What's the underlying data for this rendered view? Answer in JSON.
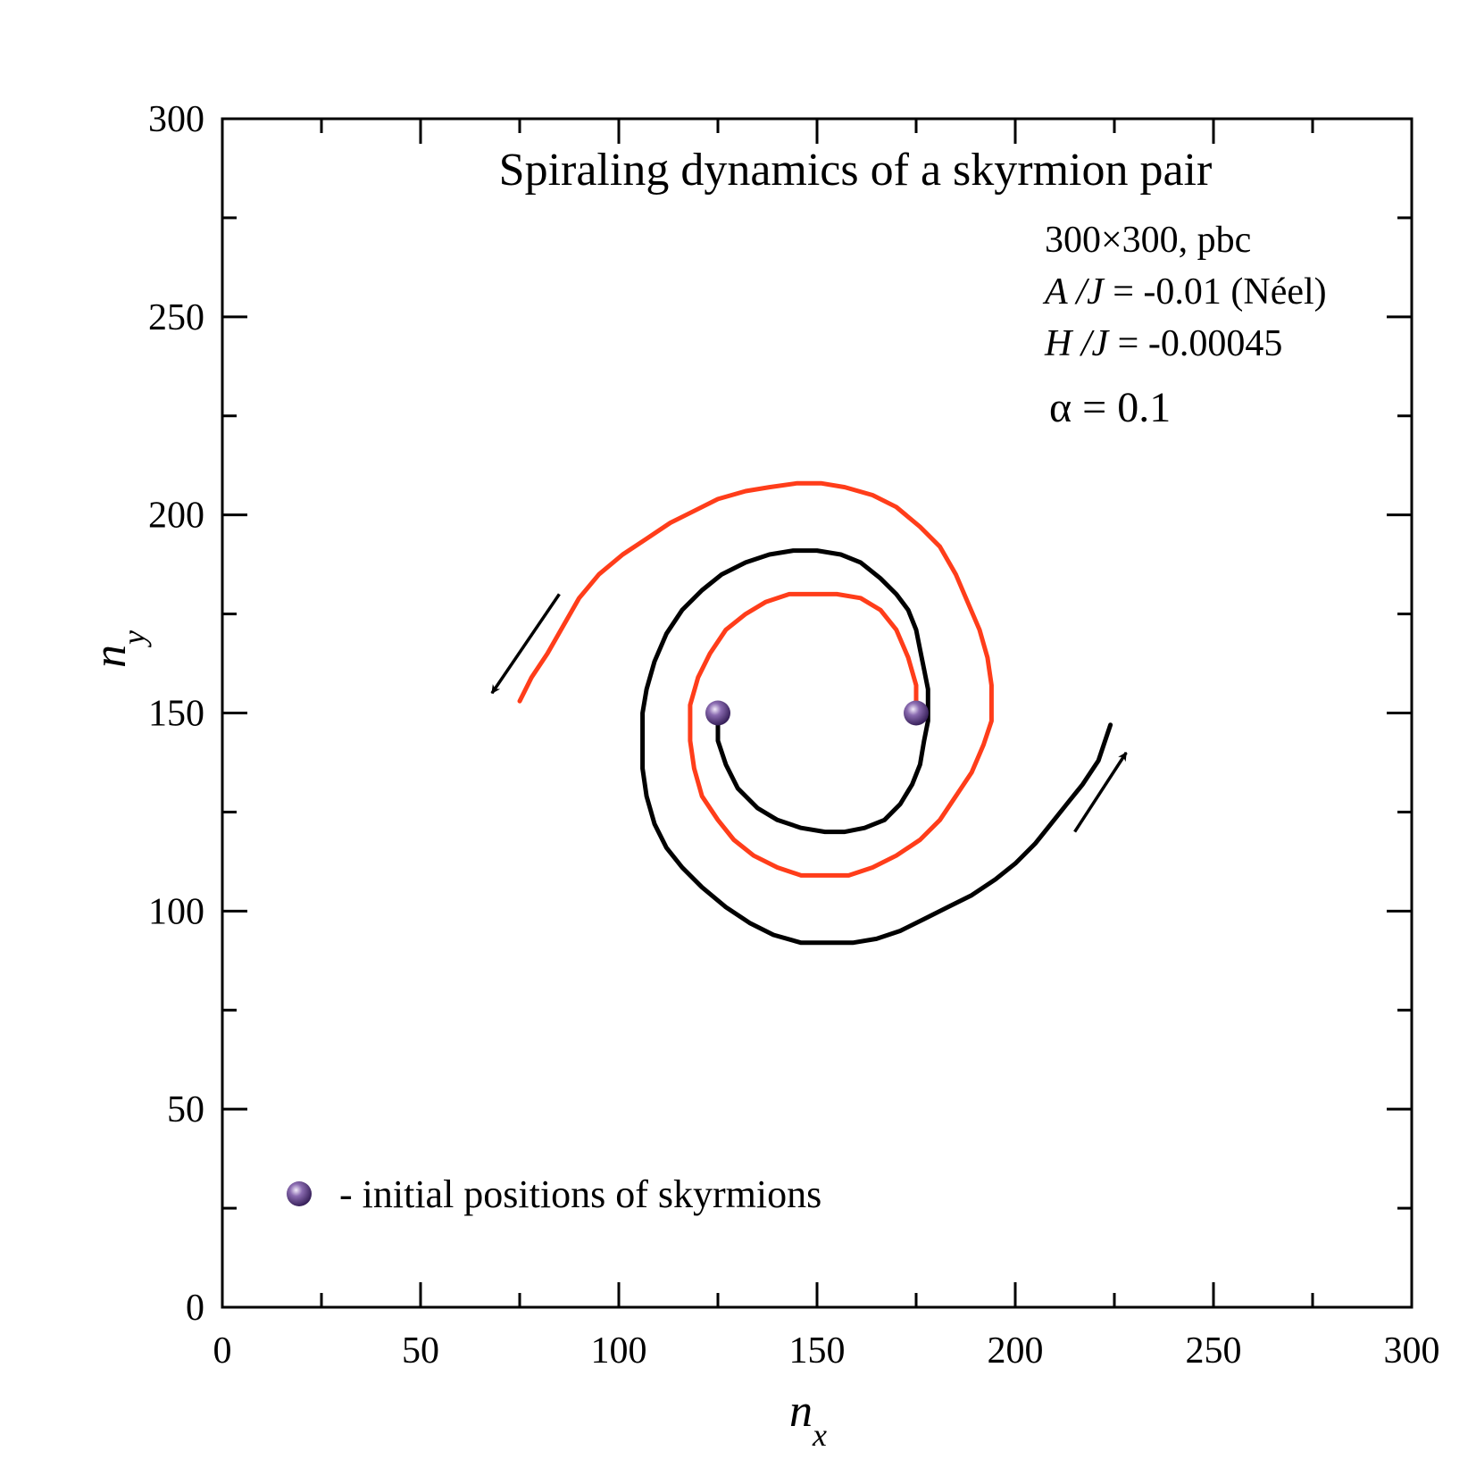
{
  "colors": {
    "axis": "#000000",
    "traj_black": "#000000",
    "traj_red": "#ff3d1a",
    "skyrmion": "#4b2d73"
  },
  "chart_data": {
    "type": "line",
    "title": "Spiraling dynamics of a skyrmion pair",
    "xlabel": "n",
    "xlabel_sub": "x",
    "ylabel": "n",
    "ylabel_sub": "y",
    "xlim": [
      0,
      300
    ],
    "ylim": [
      0,
      300
    ],
    "xticks": [
      "0",
      "50",
      "100",
      "150",
      "200",
      "250",
      "300"
    ],
    "yticks": [
      "0",
      "50",
      "100",
      "150",
      "200",
      "250",
      "300"
    ],
    "annotations": {
      "size": "300×300, pbc",
      "aj_label": "A /J",
      "aj_value": " = -0.01 (Néel)",
      "hj_label": "H /J",
      "hj_value": " = -0.00045",
      "alpha": "α = 0.1"
    },
    "legend": {
      "text": "- initial positions of skyrmions",
      "placement": "bottom-left"
    },
    "initial_positions": [
      {
        "x": 125,
        "y": 150
      },
      {
        "x": 175,
        "y": 150
      }
    ],
    "series": [
      {
        "name": "black",
        "color": "#000000",
        "x": [
          125,
          125,
          127,
          130,
          135,
          140,
          146,
          152,
          157,
          162,
          167,
          171,
          174,
          176,
          177,
          178,
          178,
          178,
          177,
          176,
          175,
          173,
          170,
          166,
          161,
          156,
          150,
          144,
          138,
          132,
          126,
          121,
          116,
          112,
          109,
          107,
          106,
          106,
          106,
          107,
          109,
          112,
          116,
          121,
          127,
          133,
          139,
          146,
          152,
          159,
          165,
          171,
          177,
          183,
          189,
          195,
          200,
          205,
          209,
          213,
          217,
          221,
          224
        ],
        "y": [
          150,
          143,
          137,
          131,
          126,
          123,
          121,
          120,
          120,
          121,
          123,
          127,
          132,
          137,
          143,
          148,
          150,
          156,
          161,
          166,
          171,
          176,
          180,
          184,
          188,
          190,
          191,
          191,
          190,
          188,
          185,
          181,
          176,
          170,
          163,
          156,
          150,
          143,
          136,
          129,
          122,
          116,
          111,
          106,
          101,
          97,
          94,
          92,
          92,
          92,
          93,
          95,
          98,
          101,
          104,
          108,
          112,
          117,
          122,
          127,
          132,
          138,
          147
        ]
      },
      {
        "name": "red",
        "color": "#ff3d1a",
        "x": [
          175,
          175,
          173,
          170,
          166,
          161,
          155,
          149,
          143,
          137,
          132,
          127,
          123,
          120,
          118,
          118,
          118,
          119,
          121,
          125,
          129,
          134,
          140,
          146,
          152,
          158,
          164,
          170,
          176,
          181,
          185,
          189,
          192,
          194,
          194,
          194,
          193,
          191,
          188,
          185,
          181,
          176,
          170,
          164,
          157,
          151,
          145,
          138,
          132,
          125,
          119,
          113,
          107,
          101,
          95,
          90,
          86,
          82,
          78,
          75
        ],
        "y": [
          150,
          157,
          164,
          171,
          176,
          179,
          180,
          180,
          180,
          178,
          175,
          171,
          165,
          159,
          152,
          150,
          143,
          136,
          129,
          123,
          118,
          114,
          111,
          109,
          109,
          109,
          111,
          114,
          118,
          123,
          129,
          135,
          142,
          148,
          150,
          157,
          164,
          171,
          178,
          185,
          192,
          197,
          202,
          205,
          207,
          208,
          208,
          207,
          206,
          204,
          201,
          198,
          194,
          190,
          185,
          179,
          172,
          165,
          159,
          153
        ]
      }
    ],
    "arrows": [
      {
        "from": [
          85,
          180
        ],
        "to": [
          68,
          155
        ]
      },
      {
        "from": [
          215,
          120
        ],
        "to": [
          228,
          140
        ]
      }
    ]
  }
}
